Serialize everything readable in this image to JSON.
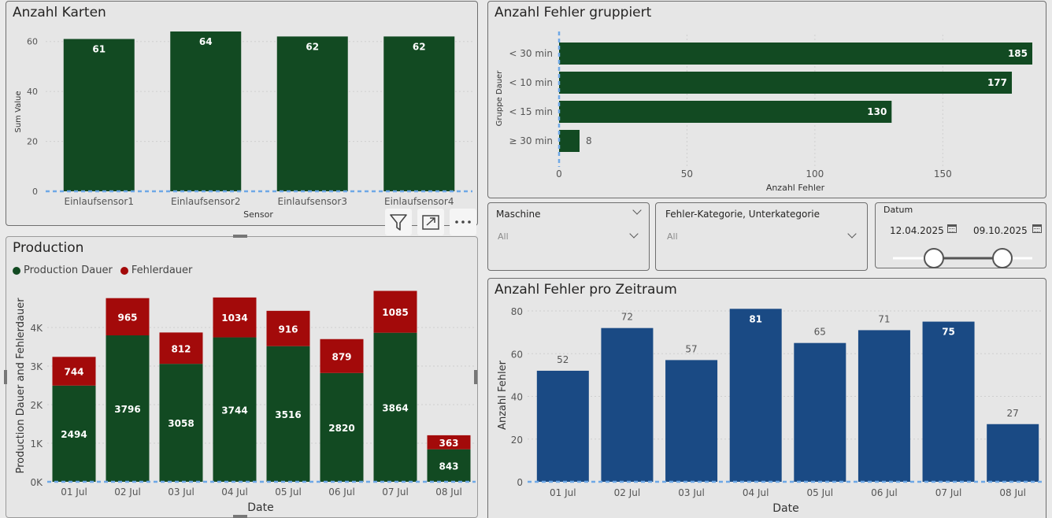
{
  "colors": {
    "green": "#124a22",
    "red": "#a30a0a",
    "blue": "#1a4a84",
    "axis_dash": "#6ea8e6"
  },
  "karten": {
    "title": "Anzahl Karten",
    "chart_data": {
      "type": "bar",
      "categories": [
        "Einlaufsensor1",
        "Einlaufsensor2",
        "Einlaufsensor3",
        "Einlaufsensor4"
      ],
      "values": [
        61,
        64,
        62,
        62
      ],
      "xlabel": "Sensor",
      "ylabel": "Sum Value",
      "yticks": [
        "60",
        "40",
        "20",
        "0"
      ],
      "ylim": [
        0,
        64
      ]
    }
  },
  "fehler_gruppiert": {
    "title": "Anzahl Fehler gruppiert",
    "chart_data": {
      "type": "bar",
      "orientation": "horizontal",
      "categories": [
        "< 30 min",
        "< 10 min",
        "< 15 min",
        "≥ 30 min"
      ],
      "values": [
        185,
        177,
        130,
        8
      ],
      "xlabel": "Anzahl Fehler",
      "ylabel": "Gruppe Dauer",
      "xticks": [
        "0",
        "50",
        "100",
        "150"
      ],
      "xlim": [
        0,
        185
      ]
    }
  },
  "slicers": {
    "maschine": {
      "title": "Maschine",
      "value": "All"
    },
    "kategorie": {
      "title": "Fehler-Kategorie, Unterkategorie",
      "value": "All"
    },
    "datum": {
      "title": "Datum",
      "start": "12.04.2025",
      "end": "09.10.2025",
      "range": [
        0,
        1
      ]
    }
  },
  "production": {
    "title": "Production",
    "legend": [
      "Production Dauer",
      "Fehlerdauer"
    ],
    "chart_data": {
      "type": "bar",
      "stacked": true,
      "categories": [
        "01 Jul",
        "02 Jul",
        "03 Jul",
        "04 Jul",
        "05 Jul",
        "06 Jul",
        "07 Jul",
        "08 Jul"
      ],
      "series": [
        {
          "name": "Production Dauer",
          "values": [
            2494,
            3796,
            3058,
            3744,
            3516,
            2820,
            3864,
            843
          ]
        },
        {
          "name": "Fehlerdauer",
          "values": [
            744,
            965,
            812,
            1034,
            916,
            879,
            1085,
            363
          ]
        }
      ],
      "xlabel": "Date",
      "ylabel": "Production Dauer and Fehlerdauer",
      "yticks": [
        "4K",
        "3K",
        "2K",
        "1K",
        "0K"
      ],
      "ylim": [
        0,
        5000
      ]
    }
  },
  "zeitraum": {
    "title": "Anzahl Fehler pro Zeitraum",
    "chart_data": {
      "type": "bar",
      "categories": [
        "01 Jul",
        "02 Jul",
        "03 Jul",
        "04 Jul",
        "05 Jul",
        "06 Jul",
        "07 Jul",
        "08 Jul"
      ],
      "values": [
        52,
        72,
        57,
        81,
        65,
        71,
        75,
        27
      ],
      "xlabel": "Date",
      "ylabel": "Anzahl Fehler",
      "yticks": [
        "80",
        "60",
        "40",
        "20",
        "0"
      ],
      "ylim": [
        0,
        81
      ]
    }
  },
  "visual_header": {
    "filter_icon": "filter-icon",
    "focus_icon": "focus-mode-icon",
    "more_icon": "more-options-icon"
  }
}
